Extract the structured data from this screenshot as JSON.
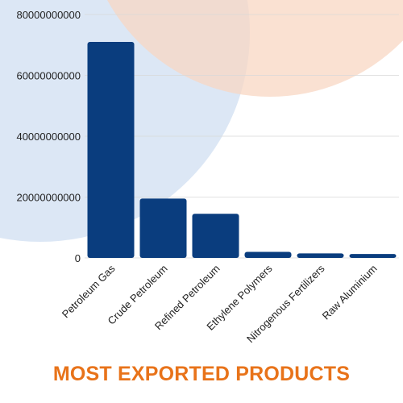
{
  "chart_data": {
    "type": "bar",
    "title": "MOST EXPORTED PRODUCTS",
    "xlabel": "",
    "ylabel": "",
    "categories": [
      "Petroleum Gas",
      "Crude Petroleum",
      "Refined Petroleum",
      "Ethylene Polymers",
      "Nitrogenous Fertilizers",
      "Raw Aluminium"
    ],
    "values": [
      71000000000,
      19500000000,
      14500000000,
      2000000000,
      1500000000,
      1300000000
    ],
    "ylim": [
      0,
      80000000000
    ],
    "yticks": [
      0,
      20000000000,
      40000000000,
      60000000000,
      80000000000
    ],
    "ytick_labels": [
      "0",
      "20000000000",
      "40000000000",
      "60000000000",
      "80000000000"
    ],
    "grid": true,
    "legend": "none"
  },
  "colors": {
    "bar": "#0a3d7e",
    "title": "#e8731a",
    "axis_text": "#222222",
    "grid": "#d9d9d9",
    "bg_circle_blue": "#d6e3f3",
    "bg_circle_peach": "#f8d7c3"
  }
}
